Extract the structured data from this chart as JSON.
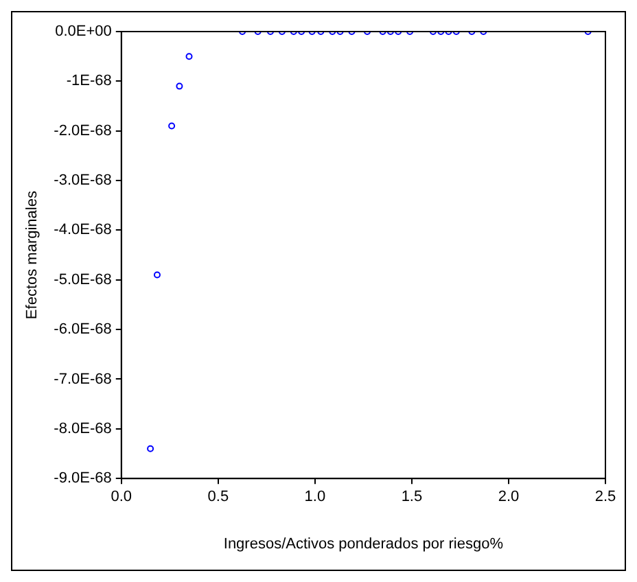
{
  "chart_data": {
    "type": "scatter",
    "xlabel": "Ingresos/Activos ponderados por riesgo%",
    "ylabel": "Efectos marginales",
    "x": [
      0.15,
      0.185,
      0.26,
      0.3,
      0.35,
      0.625,
      0.705,
      0.77,
      0.83,
      0.89,
      0.93,
      0.985,
      1.03,
      1.09,
      1.13,
      1.19,
      1.27,
      1.35,
      1.39,
      1.43,
      1.49,
      1.61,
      1.65,
      1.69,
      1.73,
      1.81,
      1.87,
      2.41
    ],
    "series": [
      {
        "color": "#0000ff",
        "values": [
          -8.4e-68,
          -4.9e-68,
          -1.9e-68,
          -1.1e-68,
          -5e-69,
          0,
          0,
          0,
          0,
          0,
          0,
          0,
          0,
          0,
          0,
          0,
          0,
          0,
          0,
          0,
          0,
          0,
          0,
          0,
          0,
          0,
          0,
          0
        ]
      }
    ],
    "marker": "circle",
    "legend": false,
    "grid": false,
    "xlim": [
      0,
      2.5
    ],
    "xticks": [
      {
        "value": 0,
        "label": "0.0"
      },
      {
        "value": 0.5,
        "label": "0.5"
      },
      {
        "value": 1,
        "label": "1.0"
      },
      {
        "value": 1.5,
        "label": "1.5"
      },
      {
        "value": 2,
        "label": "2.0"
      },
      {
        "value": 2.5,
        "label": "2.5"
      }
    ],
    "ylim": [
      -9e-68,
      0
    ],
    "yticks": [
      {
        "value": 0,
        "label": "0.0E+00"
      },
      {
        "value": -1e-68,
        "label": "-1E-68"
      },
      {
        "value": -2e-68,
        "label": "-2.0E-68"
      },
      {
        "value": -3e-68,
        "label": "-3.0E-68"
      },
      {
        "value": -4e-68,
        "label": "-4.0E-68"
      },
      {
        "value": -5e-68,
        "label": "-5.0E-68"
      },
      {
        "value": -6e-68,
        "label": "-6.0E-68"
      },
      {
        "value": -7e-68,
        "label": "-7.0E-68"
      },
      {
        "value": -8e-68,
        "label": "-8.0E-68"
      },
      {
        "value": -9e-68,
        "label": "-9.0E-68"
      }
    ]
  }
}
